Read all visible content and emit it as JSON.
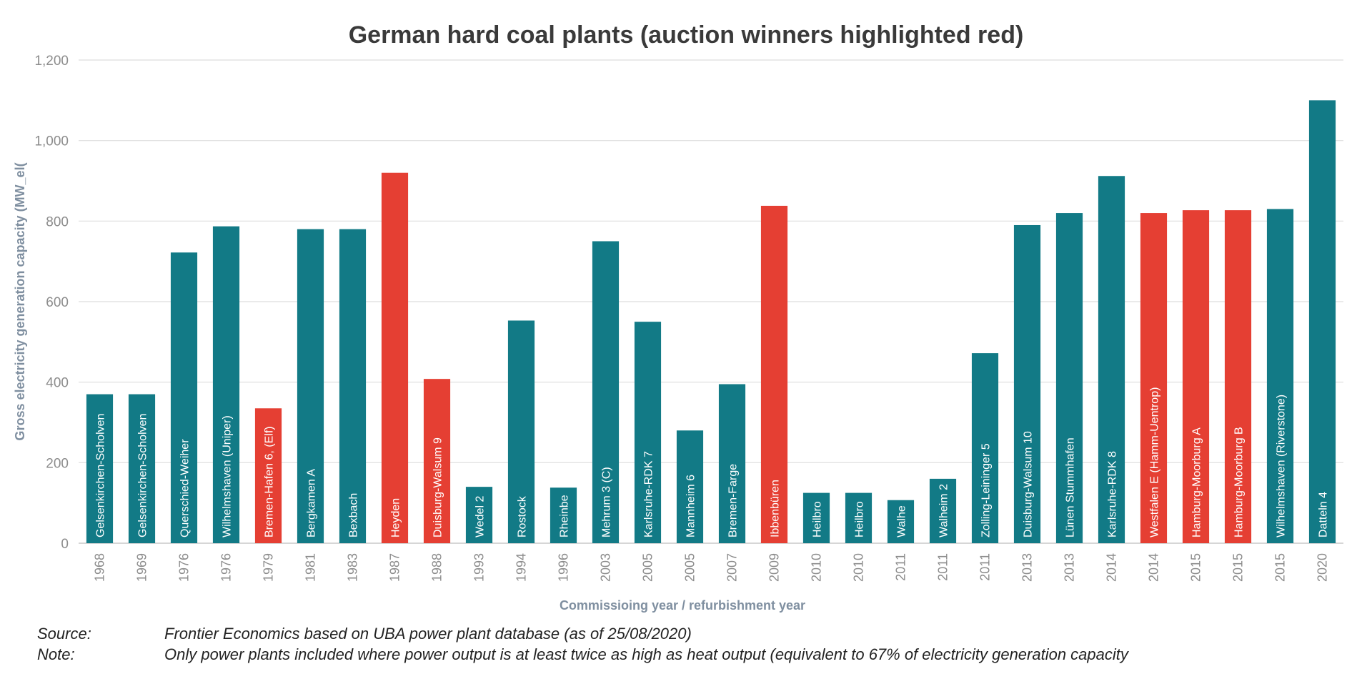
{
  "chart_data": {
    "type": "bar",
    "title": "German hard coal plants (auction winners highlighted red)",
    "xlabel": "Commissioing year / refurbishment year",
    "ylabel": "Gross electricity generation capacity (MW_el(",
    "ylim": [
      0,
      1200
    ],
    "yticks": [
      "0",
      "200",
      "400",
      "600",
      "800",
      "1,000",
      "1,200"
    ],
    "grid": true,
    "colors": {
      "default": "#127a86",
      "auction_winner": "#e53f33"
    },
    "bars": [
      {
        "year": "1968",
        "name": "Gelsenkirchen-Scholven",
        "value": 370,
        "auction": false
      },
      {
        "year": "1969",
        "name": "Gelsenkirchen-Scholven",
        "value": 370,
        "auction": false
      },
      {
        "year": "1976",
        "name": "Querschied-Weiher",
        "value": 722,
        "auction": false
      },
      {
        "year": "1976",
        "name": "Wilhelmshaven (Uniper)",
        "value": 787,
        "auction": false
      },
      {
        "year": "1979",
        "name": "Bremen-Hafen 6, (Elf)",
        "value": 335,
        "auction": true
      },
      {
        "year": "1981",
        "name": "Bergkamen A",
        "value": 780,
        "auction": false
      },
      {
        "year": "1983",
        "name": "Bexbach",
        "value": 780,
        "auction": false
      },
      {
        "year": "1987",
        "name": "Heyden",
        "value": 920,
        "auction": true
      },
      {
        "year": "1988",
        "name": "Duisburg-Walsum 9",
        "value": 408,
        "auction": true
      },
      {
        "year": "1993",
        "name": "Wedel 2",
        "value": 140,
        "auction": false
      },
      {
        "year": "1994",
        "name": "Rostock",
        "value": 553,
        "auction": false
      },
      {
        "year": "1996",
        "name": "Rheinbe",
        "value": 138,
        "auction": false
      },
      {
        "year": "2003",
        "name": "Mehrum 3 (C)",
        "value": 750,
        "auction": false
      },
      {
        "year": "2005",
        "name": "Karlsruhe-RDK 7",
        "value": 550,
        "auction": false
      },
      {
        "year": "2005",
        "name": "Mannheim 6",
        "value": 280,
        "auction": false
      },
      {
        "year": "2007",
        "name": "Bremen-Farge",
        "value": 395,
        "auction": false
      },
      {
        "year": "2009",
        "name": "Ibbenbüren",
        "value": 838,
        "auction": true
      },
      {
        "year": "2010",
        "name": "Heilbro",
        "value": 125,
        "auction": false
      },
      {
        "year": "2010",
        "name": "Heilbro",
        "value": 125,
        "auction": false
      },
      {
        "year": "2011",
        "name": "Walhe",
        "value": 107,
        "auction": false
      },
      {
        "year": "2011",
        "name": "Walheim 2",
        "value": 160,
        "auction": false
      },
      {
        "year": "2011",
        "name": "Zolling-Leininger 5",
        "value": 472,
        "auction": false
      },
      {
        "year": "2013",
        "name": "Duisburg-Walsum 10",
        "value": 790,
        "auction": false
      },
      {
        "year": "2013",
        "name": "Lünen Stummhafen",
        "value": 820,
        "auction": false
      },
      {
        "year": "2014",
        "name": "Karlsruhe-RDK 8",
        "value": 912,
        "auction": false
      },
      {
        "year": "2014",
        "name": "Westfalen E (Hamm-Uentrop)",
        "value": 820,
        "auction": true
      },
      {
        "year": "2015",
        "name": "Hamburg-Moorburg A",
        "value": 827,
        "auction": true
      },
      {
        "year": "2015",
        "name": "Hamburg-Moorburg B",
        "value": 827,
        "auction": true
      },
      {
        "year": "2015",
        "name": "Wilhelmshaven (Riverstone)",
        "value": 830,
        "auction": false
      },
      {
        "year": "2020",
        "name": "Datteln 4",
        "value": 1100,
        "auction": false
      }
    ]
  },
  "footer": {
    "source_label": "Source:",
    "source_text": "Frontier Economics based on UBA power plant database (as of 25/08/2020)",
    "note_label": "Note:",
    "note_text": "Only power plants included where power output is at least twice as high as heat output (equivalent  to 67% of electricity generation capacity"
  }
}
